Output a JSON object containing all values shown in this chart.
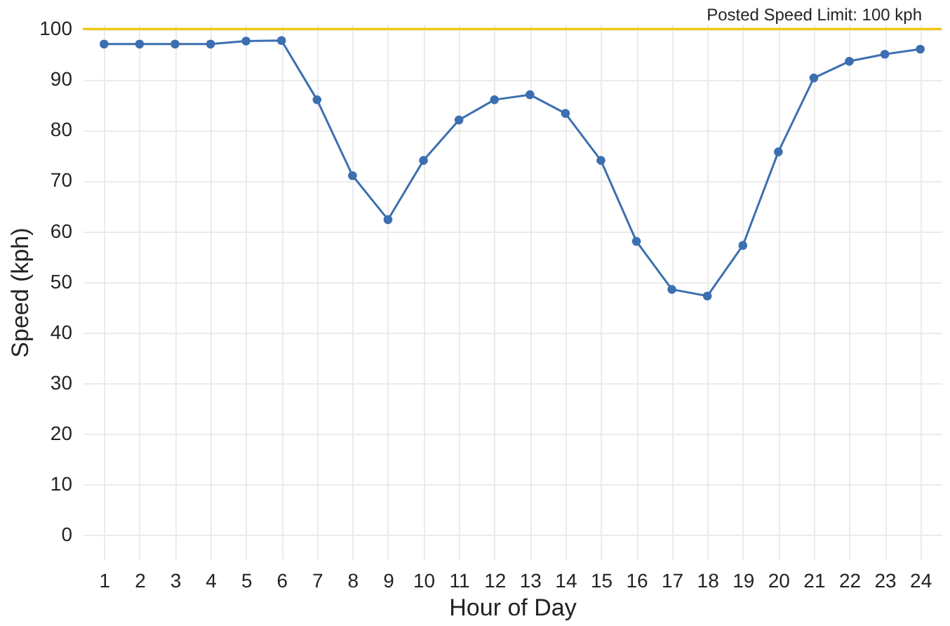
{
  "chart_data": {
    "type": "line",
    "xlabel": "Hour of Day",
    "ylabel": "Speed (kph)",
    "x": [
      1,
      2,
      3,
      4,
      5,
      6,
      7,
      8,
      9,
      10,
      11,
      12,
      13,
      14,
      15,
      16,
      17,
      18,
      19,
      20,
      21,
      22,
      23,
      24
    ],
    "series": [
      {
        "color": "#3c6fb0",
        "values": [
          97,
          97,
          97,
          97,
          97.6,
          97.7,
          86,
          71,
          62.3,
          74,
          82,
          86,
          87,
          83.3,
          74,
          58,
          48.5,
          47.2,
          57.2,
          75.7,
          90.3,
          93.6,
          95,
          96
        ]
      }
    ],
    "xlim": [
      0.4,
      24.6
    ],
    "xticks": [
      1,
      2,
      3,
      4,
      5,
      6,
      7,
      8,
      9,
      10,
      11,
      12,
      13,
      14,
      15,
      16,
      17,
      18,
      19,
      20,
      21,
      22,
      23,
      24
    ],
    "ylim": [
      -5,
      101
    ],
    "yticks": [
      0,
      10,
      20,
      30,
      40,
      50,
      60,
      70,
      80,
      90,
      100
    ],
    "ref_lines": [
      {
        "axis": "y",
        "value": 100,
        "label": "Posted Speed Limit: 100 kph",
        "color": "#f2c200"
      }
    ],
    "grid": true,
    "marker": "circle",
    "line_style": "solid"
  }
}
